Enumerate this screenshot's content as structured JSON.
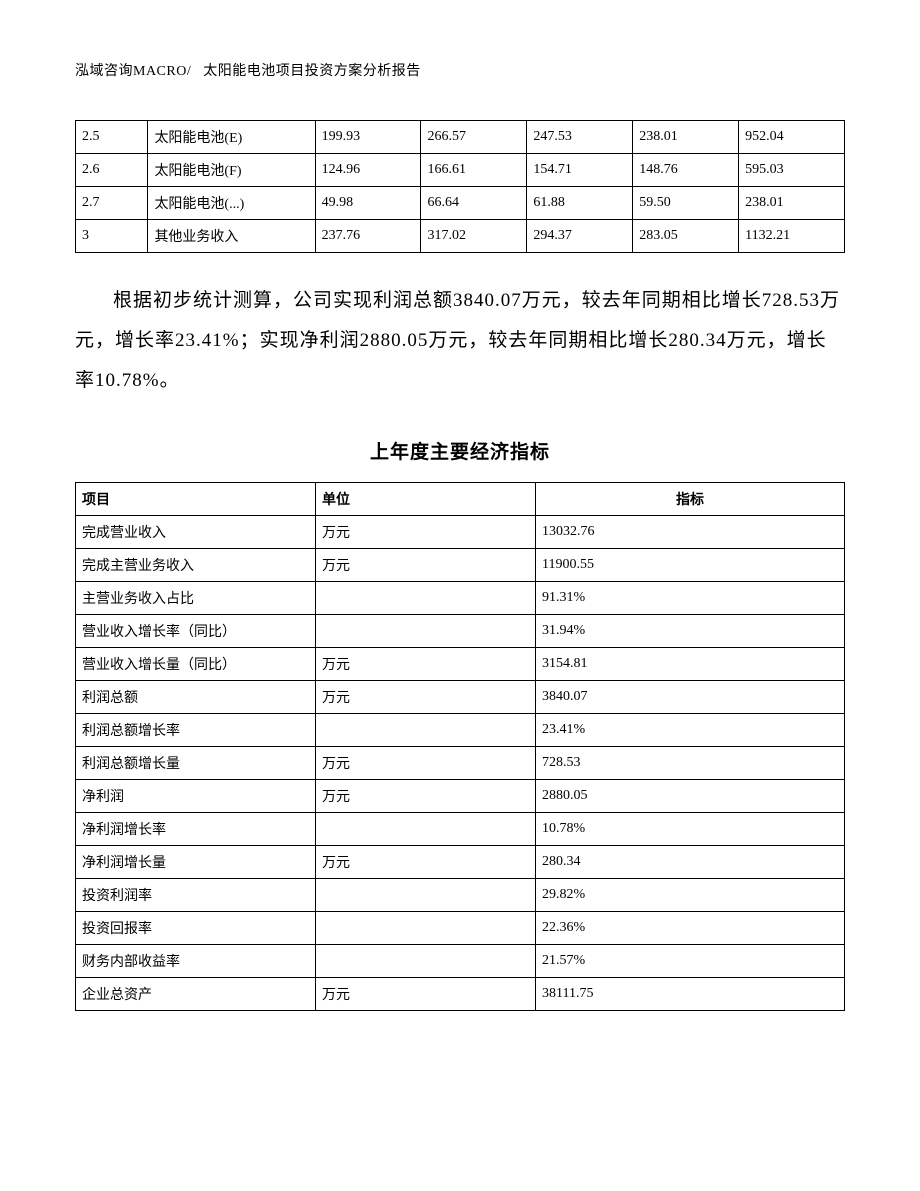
{
  "header": {
    "left": "泓域咨询MACRO/",
    "right": "太阳能电池项目投资方案分析报告"
  },
  "table1": {
    "rows": [
      [
        "2.5",
        "太阳能电池(E)",
        "199.93",
        "266.57",
        "247.53",
        "238.01",
        "952.04"
      ],
      [
        "2.6",
        "太阳能电池(F)",
        "124.96",
        "166.61",
        "154.71",
        "148.76",
        "595.03"
      ],
      [
        "2.7",
        "太阳能电池(...)",
        "49.98",
        "66.64",
        "61.88",
        "59.50",
        "238.01"
      ],
      [
        "3",
        "其他业务收入",
        "237.76",
        "317.02",
        "294.37",
        "283.05",
        "1132.21"
      ]
    ]
  },
  "paragraph": "根据初步统计测算，公司实现利润总额3840.07万元，较去年同期相比增长728.53万元，增长率23.41%；实现净利润2880.05万元，较去年同期相比增长280.34万元，增长率10.78%。",
  "section_title": "上年度主要经济指标",
  "table2": {
    "headers": [
      "项目",
      "单位",
      "指标"
    ],
    "rows": [
      [
        "完成营业收入",
        "万元",
        "13032.76"
      ],
      [
        "完成主营业务收入",
        "万元",
        "11900.55"
      ],
      [
        "主营业务收入占比",
        "",
        "91.31%"
      ],
      [
        "营业收入增长率（同比）",
        "",
        "31.94%"
      ],
      [
        "营业收入增长量（同比）",
        "万元",
        "3154.81"
      ],
      [
        "利润总额",
        "万元",
        "3840.07"
      ],
      [
        "利润总额增长率",
        "",
        "23.41%"
      ],
      [
        "利润总额增长量",
        "万元",
        "728.53"
      ],
      [
        "净利润",
        "万元",
        "2880.05"
      ],
      [
        "净利润增长率",
        "",
        "10.78%"
      ],
      [
        "净利润增长量",
        "万元",
        "280.34"
      ],
      [
        "投资利润率",
        "",
        "29.82%"
      ],
      [
        "投资回报率",
        "",
        "22.36%"
      ],
      [
        "财务内部收益率",
        "",
        "21.57%"
      ],
      [
        "企业总资产",
        "万元",
        "38111.75"
      ]
    ]
  }
}
